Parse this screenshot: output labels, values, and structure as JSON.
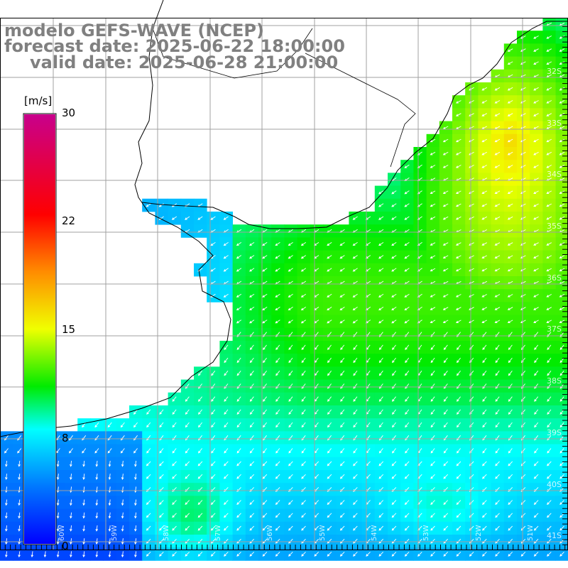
{
  "title": {
    "model": "modelo GEFS-WAVE (NCEP)",
    "forecast": "forecast date: 2025-06-22 18:00:00",
    "valid": "valid date: 2025-06-28 21:00:00"
  },
  "colorbar": {
    "unit": "[m/s]",
    "ticks": [
      "30",
      "22",
      "15",
      "8",
      "0"
    ],
    "min": 0,
    "max": 30
  },
  "map": {
    "lat_labels": [
      "32S",
      "33S",
      "34S",
      "35S",
      "36S",
      "37S",
      "38S",
      "39S",
      "40S",
      "41S"
    ],
    "lon_labels": [
      "60W",
      "59W",
      "58W",
      "57W",
      "56W",
      "55W",
      "54W",
      "53W",
      "52W",
      "51W"
    ],
    "colors": {
      "land": "#ffffff",
      "grid": "#a0a0a0",
      "coast": "#000000",
      "arrow": "#ffffff"
    }
  }
}
